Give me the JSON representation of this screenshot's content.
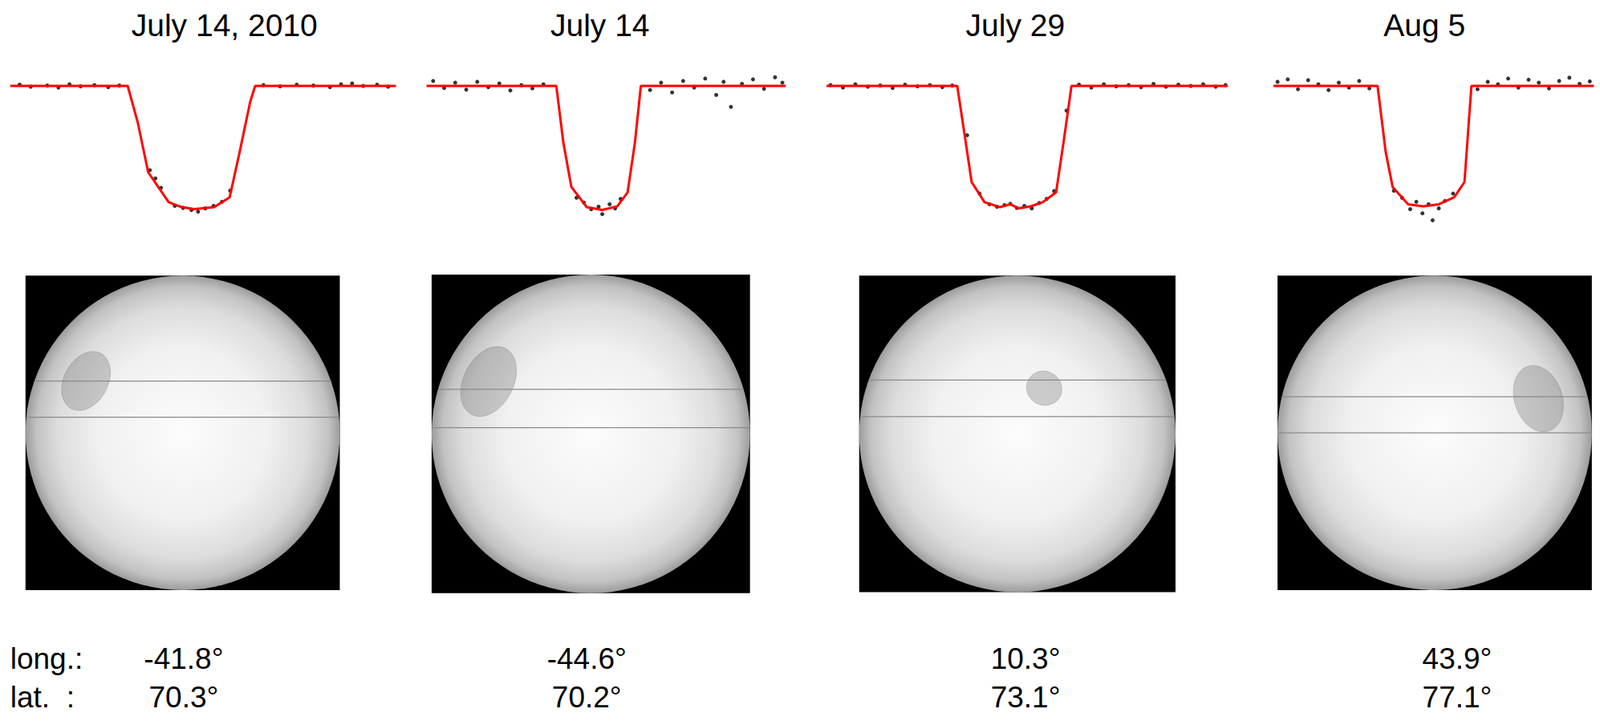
{
  "chart_data": [
    {
      "type": "line",
      "title": "July 14, 2010",
      "xlim": [
        -3.27,
        3.69
      ],
      "ylim": [
        0.965,
        1.006
      ],
      "tick_labels": false,
      "grid": false,
      "series": [
        {
          "type": "scatter",
          "color": "#000000",
          "marker": "circle",
          "x": [
            -3.1,
            -2.9,
            -2.6,
            -2.4,
            -2.2,
            -2.0,
            -1.75,
            -1.5,
            -1.3,
            -0.75,
            -0.65,
            -0.55,
            -0.3,
            -0.15,
            0.0,
            0.12,
            0.25,
            0.4,
            0.55,
            0.7,
            1.3,
            1.6,
            1.9,
            2.2,
            2.5,
            2.7,
            2.9,
            3.1,
            3.35,
            3.55
          ],
          "values": [
            1.0003,
            0.9998,
            1.0001,
            0.9996,
            1.0004,
            0.9999,
            1.0002,
            0.9997,
            1.0001,
            0.9795,
            0.9775,
            0.9752,
            0.9708,
            0.9703,
            0.9698,
            0.9694,
            0.9702,
            0.9708,
            0.9718,
            0.9745,
            1.0002,
            0.9999,
            1.0003,
            1.0001,
            0.9997,
            1.0004,
            1.0006,
            1.0,
            1.0003,
            0.9998
          ]
        },
        {
          "type": "line",
          "color": "#ff0000",
          "line_style": "solid",
          "x": [
            -3.27,
            -1.15,
            -0.97,
            -0.78,
            -0.41,
            -0.2,
            0.05,
            0.41,
            0.69,
            0.87,
            1.06,
            1.15,
            3.69
          ],
          "values": [
            1.0,
            1.0,
            0.9912,
            0.979,
            0.9717,
            0.9706,
            0.97,
            0.9705,
            0.9729,
            0.9839,
            0.9961,
            1.0,
            1.0
          ]
        }
      ],
      "spot": {
        "longitude": -41.8,
        "latitude": 70.3,
        "longitude_label": "-41.8°",
        "latitude_label": "70.3°",
        "radius": 11.5,
        "chord": [
          0.1,
          0.33
        ]
      }
    },
    {
      "type": "line",
      "title": "July 14",
      "xlim": [
        -4.68,
        5.09
      ],
      "ylim": [
        0.965,
        1.006
      ],
      "tick_labels": false,
      "grid": false,
      "series": [
        {
          "type": "scatter",
          "color": "#000000",
          "marker": "circle",
          "x": [
            -4.5,
            -4.2,
            -3.9,
            -3.6,
            -3.3,
            -3.0,
            -2.7,
            -2.4,
            -2.1,
            -1.8,
            -1.5,
            -0.6,
            -0.4,
            -0.2,
            0.0,
            0.1,
            0.3,
            0.45,
            0.6,
            1.4,
            1.7,
            2.0,
            2.3,
            2.6,
            2.9,
            3.2,
            3.4,
            3.6,
            3.9,
            4.2,
            4.5,
            4.8,
            5.0
          ],
          "values": [
            1.0012,
            0.9995,
            1.0008,
            0.9991,
            1.001,
            0.9997,
            1.0006,
            0.9989,
            1.0002,
            0.9994,
            1.0004,
            0.9728,
            0.9716,
            0.97,
            0.9706,
            0.9688,
            0.9712,
            0.9702,
            0.9725,
            0.999,
            1.0008,
            0.9984,
            1.0012,
            0.9996,
            1.0018,
            0.9978,
            1.001,
            0.9949,
            1.0005,
            1.0016,
            0.9993,
            1.0021,
            1.0008
          ]
        },
        {
          "type": "line",
          "color": "#ff0000",
          "line_style": "solid",
          "x": [
            -4.68,
            -1.15,
            -0.96,
            -0.74,
            -0.32,
            0.1,
            0.51,
            0.79,
            0.99,
            1.15,
            5.09
          ],
          "values": [
            1.0,
            1.0,
            0.9863,
            0.9754,
            0.9705,
            0.9698,
            0.9707,
            0.9741,
            0.9863,
            1.0,
            1.0
          ]
        }
      ],
      "spot": {
        "longitude": -44.6,
        "latitude": 70.2,
        "longitude_label": "-44.6°",
        "latitude_label": "70.2°",
        "radius": 13.5,
        "chord": [
          0.04,
          0.28
        ]
      }
    },
    {
      "type": "line",
      "title": "July 29",
      "xlim": [
        -3.78,
        4.29
      ],
      "ylim": [
        0.965,
        1.006
      ],
      "tick_labels": false,
      "grid": false,
      "series": [
        {
          "type": "scatter",
          "color": "#000000",
          "marker": "circle",
          "x": [
            -3.7,
            -3.45,
            -3.2,
            -2.95,
            -2.7,
            -2.45,
            -2.2,
            -1.95,
            -1.7,
            -1.45,
            -1.25,
            -0.95,
            -0.7,
            -0.5,
            -0.35,
            -0.2,
            -0.08,
            0.05,
            0.2,
            0.35,
            0.5,
            0.65,
            0.8,
            1.05,
            1.3,
            1.55,
            1.8,
            2.05,
            2.3,
            2.55,
            2.8,
            3.05,
            3.3,
            3.55,
            3.8,
            4.05,
            4.25
          ],
          "values": [
            1.0002,
            0.9996,
            1.0004,
            0.9998,
            1.0001,
            0.9995,
            1.0003,
            0.9999,
            1.0002,
            0.9997,
            1.0001,
            0.988,
            0.9738,
            0.9712,
            0.9706,
            0.971,
            0.9713,
            0.9703,
            0.9708,
            0.9702,
            0.9715,
            0.9725,
            0.9744,
            0.994,
            1.0003,
            0.9996,
            1.0004,
            0.9999,
            1.0002,
            0.9997,
            1.0005,
            0.9998,
            1.0003,
            1.0,
            1.0004,
            0.9998,
            1.0002
          ]
        },
        {
          "type": "line",
          "color": "#ff0000",
          "line_style": "solid",
          "x": [
            -3.78,
            -1.15,
            -1.01,
            -0.86,
            -0.6,
            -0.29,
            -0.08,
            0.08,
            0.33,
            0.57,
            0.84,
            0.99,
            1.15,
            4.29
          ],
          "values": [
            1.0,
            1.0,
            0.9888,
            0.9766,
            0.9717,
            0.9705,
            0.9712,
            0.9702,
            0.9707,
            0.9717,
            0.9741,
            0.9863,
            1.0,
            1.0
          ]
        }
      ],
      "spot": {
        "longitude": 10.3,
        "latitude": 73.1,
        "longitude_label": "10.3°",
        "latitude_label": "73.1°",
        "radius": 6.5,
        "chord": [
          0.11,
          0.34
        ]
      }
    },
    {
      "type": "line",
      "title": "Aug 5",
      "xlim": [
        -3.7,
        4.15
      ],
      "ylim": [
        0.965,
        1.006
      ],
      "tick_labels": false,
      "grid": false,
      "series": [
        {
          "type": "scatter",
          "color": "#000000",
          "marker": "circle",
          "x": [
            -3.6,
            -3.35,
            -3.1,
            -2.85,
            -2.6,
            -2.35,
            -2.1,
            -1.85,
            -1.6,
            -1.35,
            -0.75,
            -0.55,
            -0.35,
            -0.2,
            -0.05,
            0.1,
            0.2,
            0.35,
            0.5,
            0.7,
            1.3,
            1.55,
            1.8,
            2.05,
            2.3,
            2.55,
            2.8,
            3.05,
            3.3,
            3.55,
            3.8,
            4.05
          ],
          "values": [
            1.001,
            1.0016,
            0.9992,
            1.0014,
            1.0004,
            0.999,
            1.0008,
            0.9996,
            1.0012,
            0.9994,
            0.9745,
            0.9728,
            0.97,
            0.9718,
            0.969,
            0.9712,
            0.9673,
            0.9702,
            0.972,
            0.9738,
            0.9992,
            1.001,
            1.0004,
            1.0018,
            0.9996,
            1.0015,
            1.0008,
            0.9994,
            1.0012,
            1.002,
            1.0005,
            1.0011
          ]
        },
        {
          "type": "line",
          "color": "#ff0000",
          "line_style": "solid",
          "x": [
            -3.7,
            -1.15,
            -0.95,
            -0.78,
            -0.4,
            -0.03,
            0.35,
            0.73,
            0.98,
            1.15,
            4.15
          ],
          "values": [
            1.0,
            1.0,
            0.9839,
            0.9754,
            0.9712,
            0.9707,
            0.9712,
            0.9729,
            0.9766,
            1.0,
            1.0
          ]
        }
      ],
      "spot": {
        "longitude": 43.9,
        "latitude": 77.1,
        "longitude_label": "43.9°",
        "latitude_label": "77.1°",
        "radius": 12.5,
        "chord": [
          0.0,
          0.23
        ]
      }
    }
  ],
  "labels": {
    "longitude": "long.:",
    "latitude": "lat.  :"
  }
}
